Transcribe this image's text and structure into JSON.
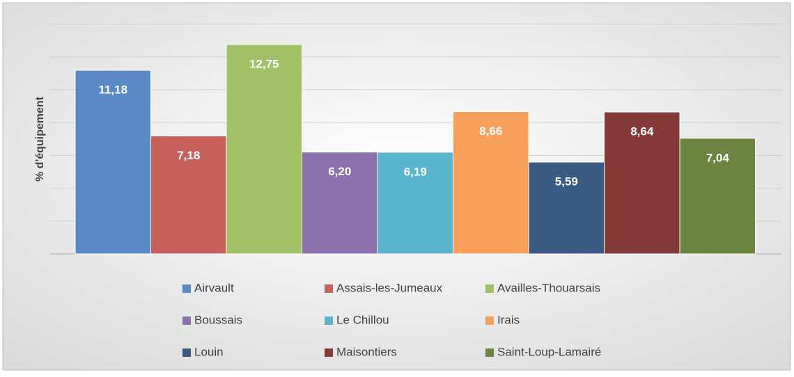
{
  "chart_data": {
    "type": "bar",
    "y_label": "% d'équipement",
    "series": [
      {
        "name": "Airvault",
        "color": "#5a89c5",
        "values": [
          11.18
        ],
        "value_labels": [
          "11,18"
        ]
      },
      {
        "name": "Assais-les-Jumeaux",
        "color": "#c8605d",
        "values": [
          7.18
        ],
        "value_labels": [
          "7,18"
        ]
      },
      {
        "name": "Availles-Thouarsais",
        "color": "#a2c068",
        "values": [
          12.75
        ],
        "value_labels": [
          "12,75"
        ]
      },
      {
        "name": "Boussais",
        "color": "#8c72ad",
        "values": [
          6.2
        ],
        "value_labels": [
          "6,20"
        ]
      },
      {
        "name": "Le Chillou",
        "color": "#5bb5cd",
        "values": [
          6.19
        ],
        "value_labels": [
          "6,19"
        ]
      },
      {
        "name": "Irais",
        "color": "#f7a05c",
        "values": [
          8.66
        ],
        "value_labels": [
          "8,66"
        ]
      },
      {
        "name": "Louin",
        "color": "#3b5a82",
        "values": [
          5.59
        ],
        "value_labels": [
          "5,59"
        ]
      },
      {
        "name": "Maisontiers",
        "color": "#843a38",
        "values": [
          8.64
        ],
        "value_labels": [
          "8,64"
        ]
      },
      {
        "name": "Saint-Loup-Lamairé",
        "color": "#6b8440",
        "values": [
          7.04
        ],
        "value_labels": [
          "7,04"
        ]
      }
    ],
    "ylim": [
      0,
      14
    ],
    "yticks": [
      0,
      2,
      4,
      6,
      8,
      10,
      12,
      14
    ],
    "grid": true,
    "legend": "bottom"
  }
}
